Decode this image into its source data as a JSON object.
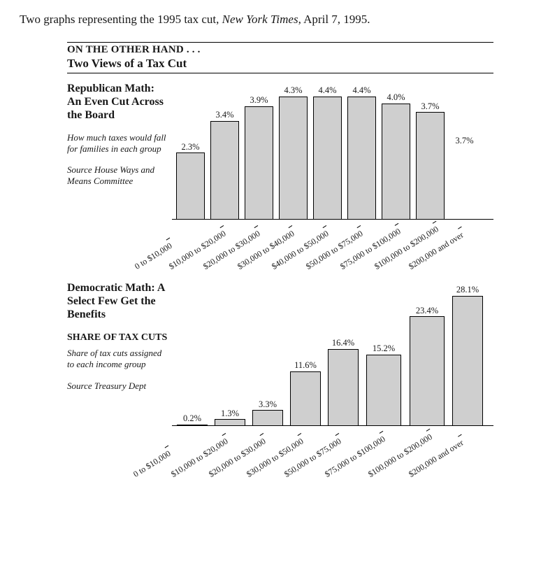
{
  "caption_prefix": "Two graphs representing the 1995 tax cut, ",
  "caption_source": "New York Times",
  "caption_suffix": ", April 7, 1995.",
  "kicker": "ON THE OTHER HAND . . .",
  "headline": "Two Views of a Tax Cut",
  "chart1": {
    "type": "bar",
    "title": "Republican Math: An Even Cut Across the Board",
    "desc": "How much taxes would fall for families in each group",
    "source": "Source House Ways and Means Committee",
    "bar_fill": "#cfcfcf",
    "bar_border": "#000000",
    "value_suffix": "%",
    "ymax": 4.6,
    "categories": [
      "0 to $10,000",
      "$10,000 to $20,000",
      "$20,000 to $30,000",
      "$30,000 to $40,000",
      "$40,000 to $50,000",
      "$50,000 to $75,000",
      "$75,000 to $100,000",
      "$100,000 to $200,000",
      "$200,000 and over"
    ],
    "values": [
      2.3,
      3.4,
      3.9,
      4.3,
      4.4,
      4.4,
      4.0,
      3.7,
      3.7
    ],
    "last_bar_hidden_with_label": true,
    "xlabel_rotate_deg": -32,
    "label_fontsize": 12.5
  },
  "chart2": {
    "type": "bar",
    "title": "Democratic Math: A Select Few Get the Benefits",
    "subheading": "SHARE OF TAX CUTS",
    "desc": "Share of tax cuts assigned to each income group",
    "source": "Source Treasury Dept",
    "bar_fill": "#cfcfcf",
    "bar_border": "#000000",
    "value_suffix": "%",
    "ymax": 30,
    "categories": [
      "0 to $10,000",
      "$10,000 to $20,000",
      "$20,000 to $30,000",
      "$30,000 to $50,000",
      "$50,000 to $75,000",
      "$75,000 to $100,000",
      "$100,000 to $200,000",
      "$200,000 and over"
    ],
    "values": [
      0.2,
      1.3,
      3.3,
      11.6,
      16.4,
      15.2,
      23.4,
      28.1
    ],
    "xlabel_rotate_deg": -32,
    "label_fontsize": 12.5
  },
  "colors": {
    "background": "#ffffff",
    "text": "#181818",
    "rule": "#000000"
  }
}
